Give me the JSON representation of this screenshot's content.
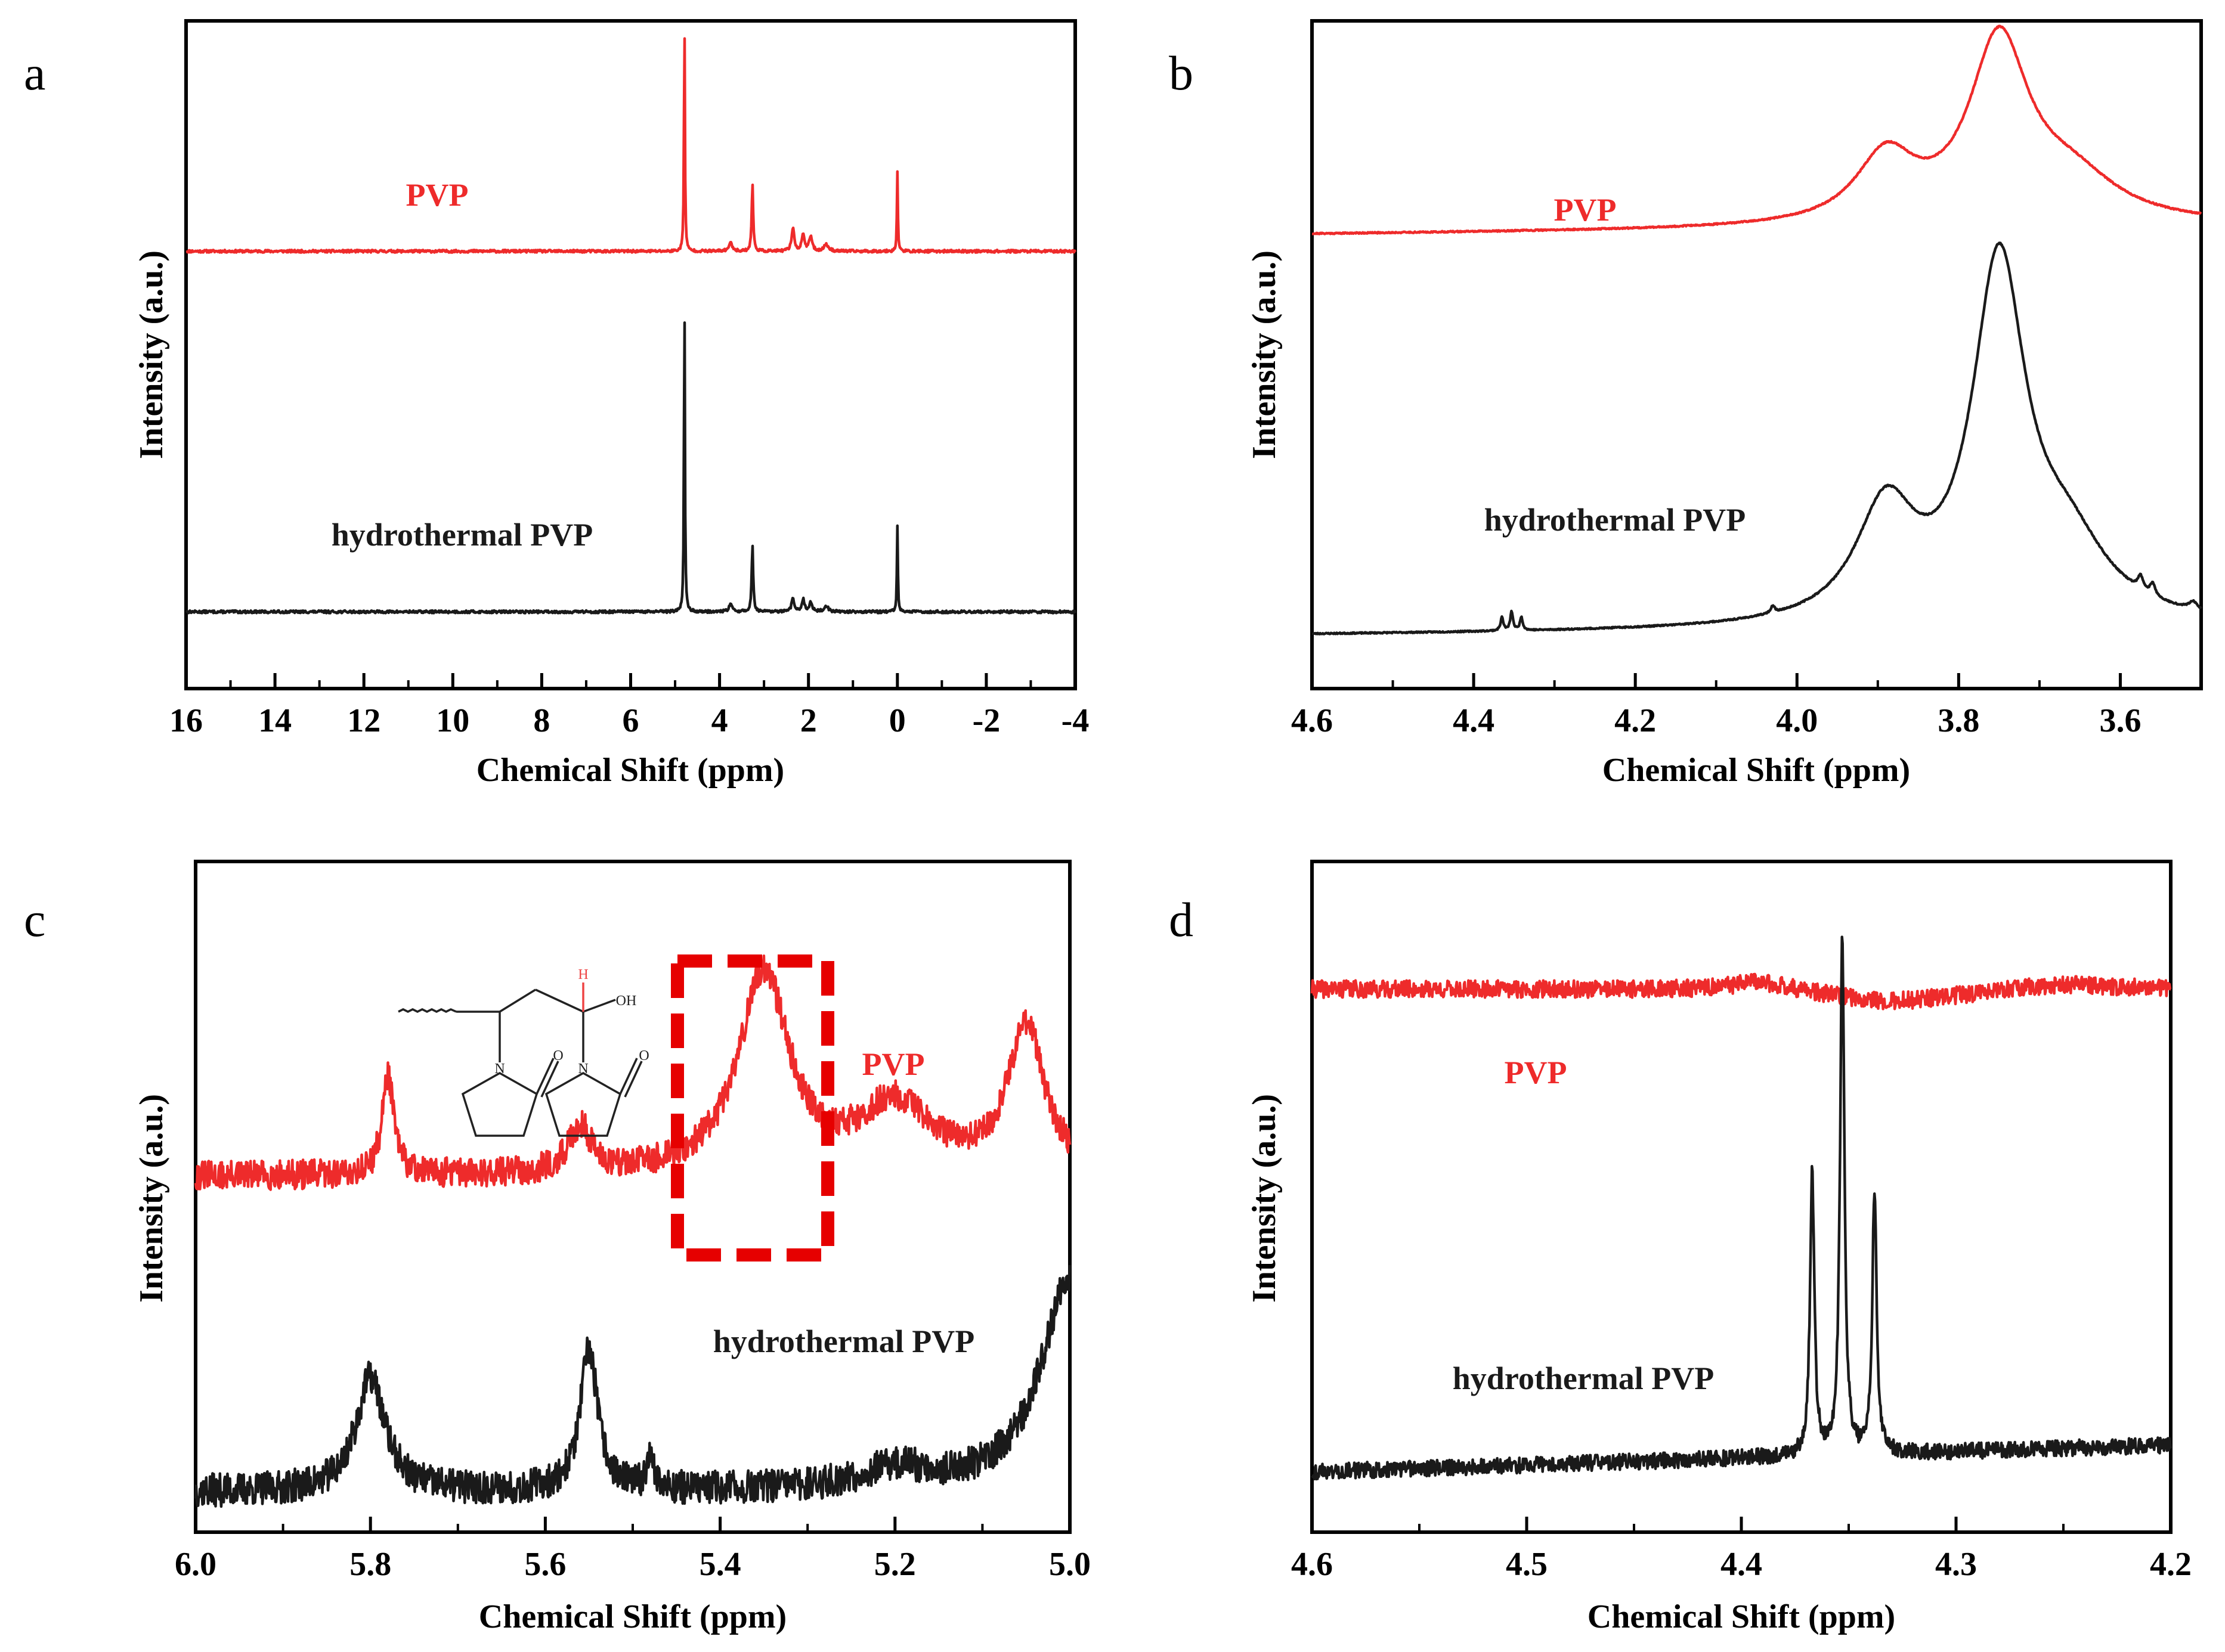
{
  "colors": {
    "pvp": "#ee2b2b",
    "hydrothermal": "#1a1a1a",
    "highlight": "#e60000",
    "axis": "#000000",
    "inset_h": "#ee4444"
  },
  "chart_data": [
    {
      "id": "a",
      "type": "line",
      "panel": "a",
      "xlabel": "Chemical Shift (ppm)",
      "ylabel": "Intensity (a.u.)",
      "xlim": [
        16,
        -4
      ],
      "xticks": [
        16,
        14,
        12,
        10,
        8,
        6,
        4,
        2,
        0,
        -2,
        -4
      ],
      "xtick_labels": [
        "16",
        "14",
        "12",
        "10",
        "8",
        "6",
        "4",
        "2",
        "0",
        "-2",
        "-4"
      ],
      "series": [
        {
          "name": "PVP",
          "color": "#ee2b2b",
          "label_side": "left",
          "baseline": 0.655,
          "noise": 0.002,
          "noise_seed": 11,
          "peaks": [
            {
              "x": 4.79,
              "h": 0.36,
              "w": 0.012
            },
            {
              "x": 3.26,
              "h": 0.1,
              "w": 0.02
            },
            {
              "x": 3.75,
              "h": 0.012,
              "w": 0.05
            },
            {
              "x": 2.35,
              "h": 0.035,
              "w": 0.035
            },
            {
              "x": 2.12,
              "h": 0.026,
              "w": 0.035
            },
            {
              "x": 1.95,
              "h": 0.022,
              "w": 0.04
            },
            {
              "x": 1.6,
              "h": 0.01,
              "w": 0.06
            },
            {
              "x": 0.0,
              "h": 0.12,
              "w": 0.012
            }
          ]
        },
        {
          "name": "hydrothermal PVP",
          "color": "#1a1a1a",
          "label_side": "left",
          "baseline": 0.115,
          "noise": 0.002,
          "noise_seed": 13,
          "peaks": [
            {
              "x": 4.79,
              "h": 0.49,
              "w": 0.012
            },
            {
              "x": 3.26,
              "h": 0.1,
              "w": 0.02
            },
            {
              "x": 3.75,
              "h": 0.01,
              "w": 0.05
            },
            {
              "x": 2.35,
              "h": 0.02,
              "w": 0.035
            },
            {
              "x": 2.12,
              "h": 0.018,
              "w": 0.035
            },
            {
              "x": 1.95,
              "h": 0.014,
              "w": 0.04
            },
            {
              "x": 1.6,
              "h": 0.008,
              "w": 0.06
            },
            {
              "x": 0.0,
              "h": 0.13,
              "w": 0.012
            }
          ]
        }
      ]
    },
    {
      "id": "b",
      "type": "line",
      "panel": "b",
      "xlabel": "Chemical Shift (ppm)",
      "ylabel": "Intensity (a.u.)",
      "xlim": [
        4.6,
        3.5
      ],
      "xticks": [
        4.6,
        4.4,
        4.2,
        4.0,
        3.8,
        3.6
      ],
      "xtick_labels": [
        "4.6",
        "4.4",
        "4.2",
        "4.0",
        "3.8",
        "3.6"
      ],
      "series": [
        {
          "name": "PVP",
          "color": "#ee2b2b",
          "baseline": 0.68,
          "slope": 0.012,
          "noise": 0.001,
          "noise_seed": 21,
          "peaks": [
            {
              "x": 3.89,
              "h": 0.1,
              "w": 0.045
            },
            {
              "x": 3.75,
              "h": 0.27,
              "w": 0.045
            },
            {
              "x": 3.66,
              "h": 0.06,
              "w": 0.07
            }
          ]
        },
        {
          "name": "hydrothermal PVP",
          "color": "#1a1a1a",
          "baseline": 0.08,
          "slope": 0.01,
          "noise": 0.001,
          "noise_seed": 23,
          "peaks": [
            {
              "x": 3.89,
              "h": 0.17,
              "w": 0.045
            },
            {
              "x": 3.75,
              "h": 0.53,
              "w": 0.04
            },
            {
              "x": 3.665,
              "h": 0.1,
              "w": 0.06
            },
            {
              "x": 4.365,
              "h": 0.02,
              "w": 0.002
            },
            {
              "x": 4.353,
              "h": 0.028,
              "w": 0.002
            },
            {
              "x": 4.341,
              "h": 0.02,
              "w": 0.002
            },
            {
              "x": 4.03,
              "h": 0.01,
              "w": 0.003
            },
            {
              "x": 3.575,
              "h": 0.02,
              "w": 0.004
            },
            {
              "x": 3.56,
              "h": 0.018,
              "w": 0.004
            },
            {
              "x": 3.51,
              "h": 0.012,
              "w": 0.006
            }
          ]
        }
      ]
    },
    {
      "id": "c",
      "type": "line",
      "panel": "c",
      "xlabel": "Chemical Shift (ppm)",
      "ylabel": "Intensity (a.u.)",
      "xlim": [
        6.0,
        5.0
      ],
      "xticks": [
        6.0,
        5.8,
        5.6,
        5.4,
        5.2,
        5.0
      ],
      "xtick_labels": [
        "6.0",
        "5.8",
        "5.6",
        "5.4",
        "5.2",
        "5.0"
      ],
      "series": [
        {
          "name": "PVP",
          "color": "#ee2b2b",
          "baseline": 0.53,
          "noise": 0.022,
          "noise_seed": 31,
          "peaks": [
            {
              "x": 5.78,
              "h": 0.15,
              "w": 0.008
            },
            {
              "x": 5.56,
              "h": 0.07,
              "w": 0.015
            },
            {
              "x": 5.35,
              "h": 0.3,
              "w": 0.035
            },
            {
              "x": 5.2,
              "h": 0.1,
              "w": 0.05
            },
            {
              "x": 5.05,
              "h": 0.22,
              "w": 0.025
            }
          ]
        },
        {
          "name": "hydrothermal PVP",
          "color": "#1a1a1a",
          "baseline": 0.06,
          "noise": 0.025,
          "noise_seed": 37,
          "peaks": [
            {
              "x": 5.8,
              "h": 0.17,
              "w": 0.02
            },
            {
              "x": 5.55,
              "h": 0.21,
              "w": 0.012
            },
            {
              "x": 5.48,
              "h": 0.06,
              "w": 0.004
            },
            {
              "x": 5.2,
              "h": 0.03,
              "w": 0.05
            },
            {
              "x": 5.0,
              "h": 0.32,
              "w": 0.04
            }
          ]
        }
      ],
      "highlight_box": {
        "x_from": 5.45,
        "x_to": 5.28
      },
      "inset": {
        "h_label": "H",
        "oh_label": "OH",
        "n_label": "N",
        "o_label": "O"
      }
    },
    {
      "id": "d",
      "type": "line",
      "panel": "d",
      "xlabel": "Chemical Shift (ppm)",
      "ylabel": "Intensity (a.u.)",
      "xlim": [
        4.6,
        4.2
      ],
      "xticks": [
        4.6,
        4.5,
        4.4,
        4.3,
        4.2
      ],
      "xtick_labels": [
        "4.6",
        "4.5",
        "4.4",
        "4.3",
        "4.2"
      ],
      "series": [
        {
          "name": "PVP",
          "color": "#ee2b2b",
          "baseline": 0.81,
          "noise": 0.013,
          "noise_seed": 41,
          "peaks": [
            {
              "x": 4.39,
              "h": 0.015,
              "w": 0.02
            },
            {
              "x": 4.33,
              "h": -0.02,
              "w": 0.04
            },
            {
              "x": 4.25,
              "h": 0.01,
              "w": 0.03
            }
          ]
        },
        {
          "name": "hydrothermal PVP",
          "color": "#1a1a1a",
          "baseline": 0.09,
          "slope": 0.04,
          "noise": 0.012,
          "noise_seed": 43,
          "peaks": [
            {
              "x": 4.367,
              "h": 0.42,
              "w": 0.0012
            },
            {
              "x": 4.353,
              "h": 0.78,
              "w": 0.0012
            },
            {
              "x": 4.338,
              "h": 0.39,
              "w": 0.0012
            }
          ]
        }
      ]
    }
  ]
}
